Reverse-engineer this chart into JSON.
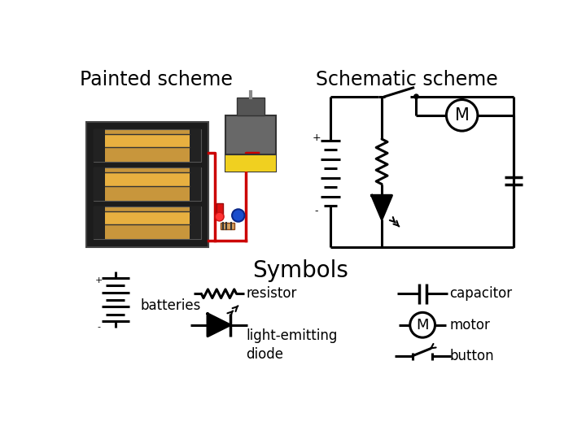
{
  "title_painted": "Painted scheme",
  "title_schematic": "Schematic scheme",
  "title_symbols": "Symbols",
  "bg_color": "#ffffff",
  "line_color": "#000000",
  "labels": {
    "batteries": "batteries",
    "resistor": "resistor",
    "led": "light-emitting\ndiode",
    "capacitor": "capacitor",
    "motor": "motor",
    "button": "button"
  },
  "font_size_title": 17,
  "font_size_label": 12
}
